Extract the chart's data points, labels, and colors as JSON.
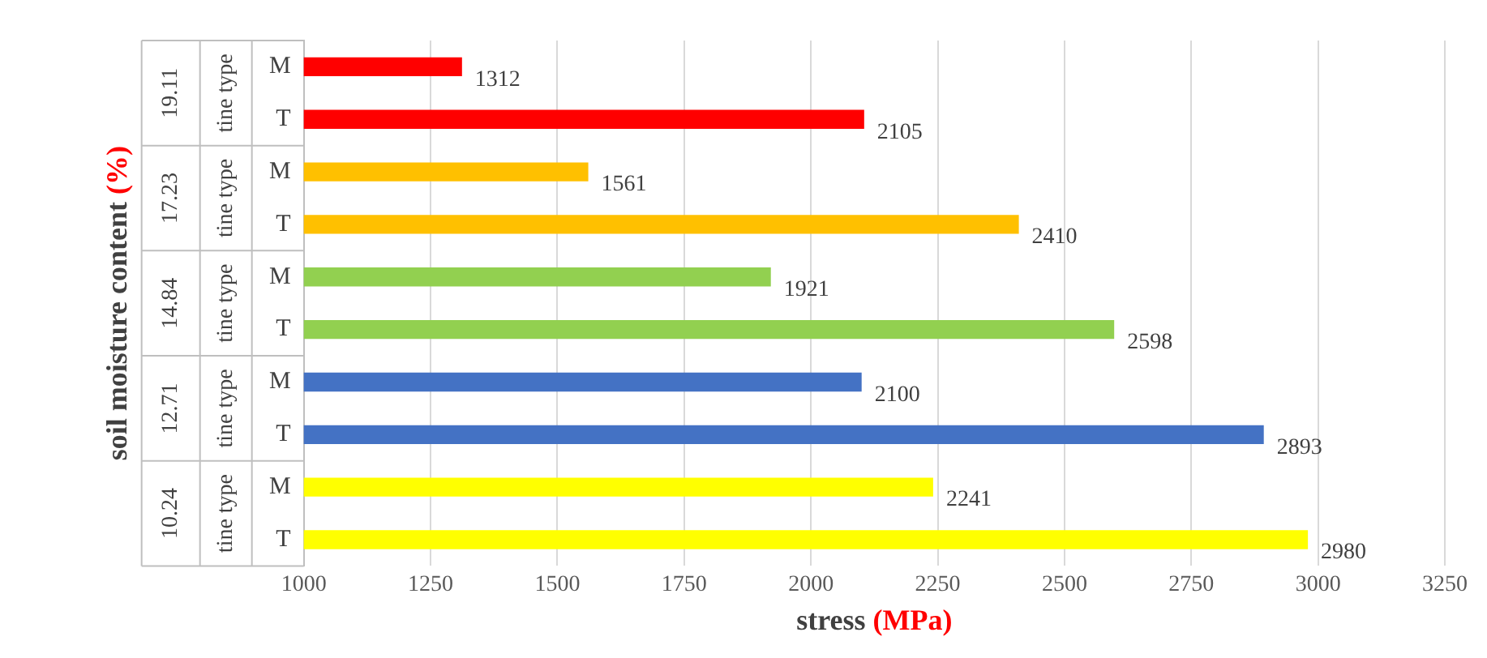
{
  "chart_data": {
    "type": "bar",
    "orientation": "horizontal",
    "xlabel": "stress (MPa)",
    "ylabel": "soil moisture content (%)",
    "categories": [
      "M",
      "T",
      "M",
      "T",
      "M",
      "T",
      "M",
      "T",
      "M",
      "T"
    ],
    "values": [
      1312,
      2105,
      1561,
      2410,
      1921,
      2598,
      2100,
      2893,
      2241,
      2980
    ],
    "colors": [
      "#ff0000",
      "#ff0000",
      "#ffc000",
      "#ffc000",
      "#92d050",
      "#92d050",
      "#4472c4",
      "#4472c4",
      "#ffff00",
      "#ffff00"
    ],
    "annotations": [
      "19.11",
      "tine type",
      "17.23",
      "tine type",
      "14.84",
      "tine type",
      "12.71",
      "tine type",
      "10.24",
      "tine type"
    ],
    "xlim": [
      1000,
      3250
    ],
    "xticks": [
      1000,
      1250,
      1500,
      1750,
      2000,
      2250,
      2500,
      2750,
      3000,
      3250
    ],
    "grid": "x",
    "legend": false,
    "data_labels": true
  }
}
